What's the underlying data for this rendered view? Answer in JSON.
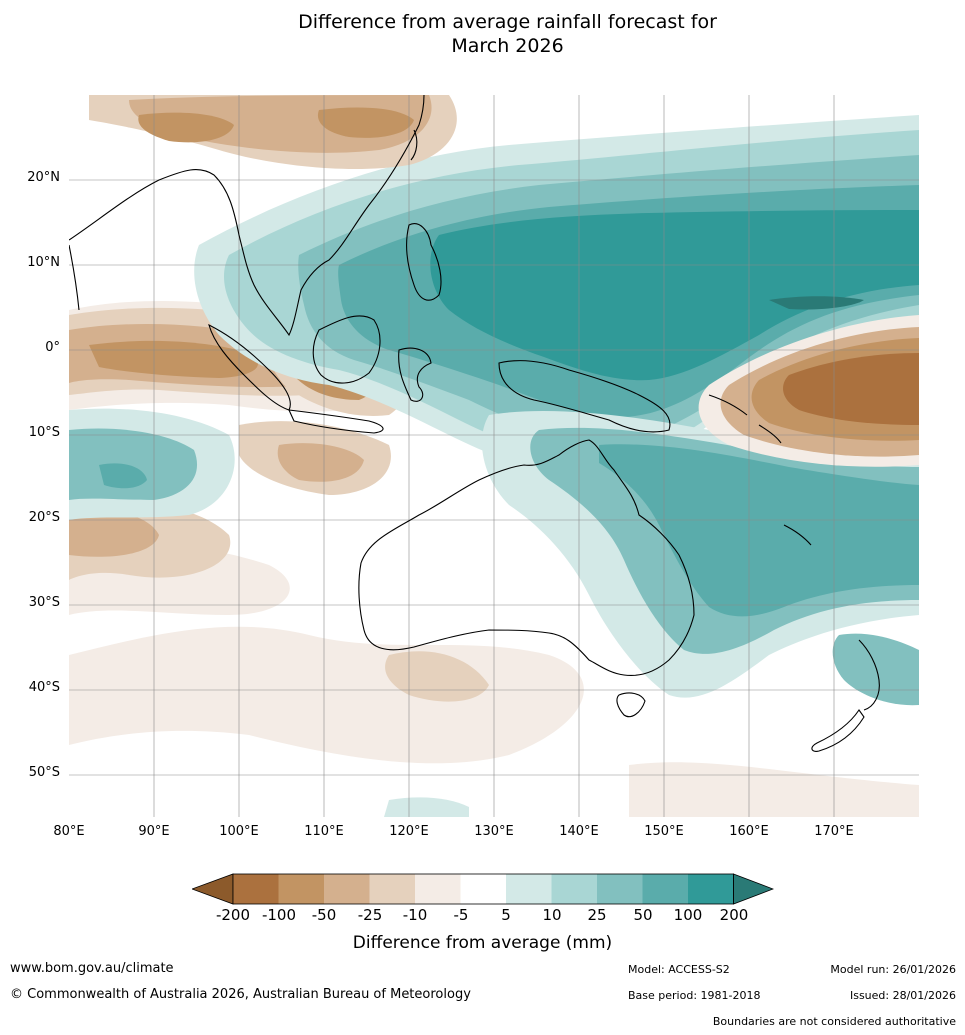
{
  "title": {
    "line1": "Difference from average rainfall forecast for",
    "line2": "March 2026"
  },
  "map": {
    "lat_labels": [
      "20°N",
      "10°N",
      "0°",
      "10°S",
      "20°S",
      "30°S",
      "40°S",
      "50°S"
    ],
    "lon_labels": [
      "80°E",
      "90°E",
      "100°E",
      "110°E",
      "120°E",
      "130°E",
      "140°E",
      "150°E",
      "160°E",
      "170°E"
    ],
    "extent": {
      "lon": [
        80,
        180
      ],
      "lat": [
        -55,
        30
      ]
    },
    "colors": {
      "dry_200plus": "#8c5a2b",
      "dry_100_200": "#ab713e",
      "dry_50_100": "#c29463",
      "dry_25_50": "#d4b08e",
      "dry_10_25": "#e5d1bd",
      "dry_5_10": "#f4ece6",
      "neutral": "#ffffff",
      "wet_5_10": "#d3e9e7",
      "wet_10_25": "#a9d6d4",
      "wet_25_50": "#82c0bf",
      "wet_50_100": "#5aacab",
      "wet_100_200": "#309a98",
      "wet_200plus": "#2a7a76"
    }
  },
  "colorbar": {
    "ticks": [
      "-200",
      "-100",
      "-50",
      "-25",
      "-10",
      "-5",
      "5",
      "10",
      "25",
      "50",
      "100",
      "200"
    ],
    "label": "Difference from average (mm)"
  },
  "footer": {
    "website": "www.bom.gov.au/climate",
    "copyright": "© Commonwealth of Australia 2026, Australian Bureau of Meteorology",
    "model": "Model: ACCESS-S2",
    "base_period": "Base period: 1981-2018",
    "model_run": "Model run: 26/01/2026",
    "issued": "Issued: 28/01/2026",
    "boundaries_note": "Boundaries are not considered authoritative"
  }
}
